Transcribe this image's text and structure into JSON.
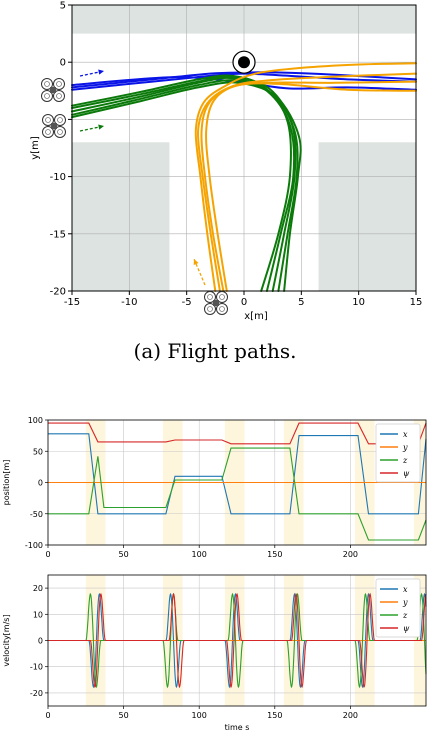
{
  "caption": "(a) Flight paths.",
  "chart_data": [
    {
      "type": "line",
      "xlabel": "x[m]",
      "ylabel": "y[m]",
      "xlim": [
        -15,
        15
      ],
      "ylim": [
        -20,
        5
      ],
      "xticks": [
        -15,
        -10,
        -5,
        0,
        5,
        10,
        15
      ],
      "yticks": [
        5,
        0,
        -5,
        -10,
        -15,
        -20
      ],
      "grid": true,
      "colors": {
        "blue": "#0a14e6",
        "green": "#0b7a0b",
        "orange": "#f5a300",
        "obstacle": "#dde3e0"
      },
      "obstacles": [
        {
          "x": [
            -15,
            15
          ],
          "y": [
            2.5,
            5
          ]
        },
        {
          "x": [
            -15,
            -6.5
          ],
          "y": [
            -7,
            -20
          ]
        },
        {
          "x": [
            6.5,
            15
          ],
          "y": [
            -7,
            -20
          ]
        }
      ],
      "series": [
        {
          "color": "blue",
          "points": [
            [
              -15,
              -2.2
            ],
            [
              -8,
              -1.5
            ],
            [
              -3,
              -1.0
            ],
            [
              0,
              -0.9
            ],
            [
              3,
              -0.9
            ],
            [
              8,
              -1.1
            ],
            [
              15,
              -1.5
            ]
          ]
        },
        {
          "color": "blue",
          "points": [
            [
              -15,
              -2.4
            ],
            [
              -8,
              -1.7
            ],
            [
              -3,
              -1.2
            ],
            [
              0,
              -1.0
            ],
            [
              4,
              -1.2
            ],
            [
              9,
              -1.5
            ],
            [
              15,
              -1.7
            ]
          ]
        },
        {
          "color": "blue",
          "points": [
            [
              -15,
              -2.0
            ],
            [
              -6,
              -1.3
            ],
            [
              0,
              -1.8
            ],
            [
              4,
              -2.3
            ],
            [
              9,
              -2.2
            ],
            [
              15,
              -2.4
            ]
          ]
        },
        {
          "color": "green",
          "points": [
            [
              -15,
              -4.3
            ],
            [
              -9,
              -3.0
            ],
            [
              -4,
              -1.8
            ],
            [
              -1,
              -1.4
            ],
            [
              2,
              -2.5
            ],
            [
              4,
              -5.5
            ],
            [
              4.3,
              -10
            ],
            [
              3.2,
              -15
            ],
            [
              2,
              -20
            ]
          ]
        },
        {
          "color": "green",
          "points": [
            [
              -15,
              -4.0
            ],
            [
              -9,
              -2.8
            ],
            [
              -4,
              -1.7
            ],
            [
              -1,
              -1.3
            ],
            [
              2.2,
              -2.3
            ],
            [
              4.2,
              -5.5
            ],
            [
              4.4,
              -10
            ],
            [
              3.5,
              -15
            ],
            [
              2.5,
              -20
            ]
          ]
        },
        {
          "color": "green",
          "points": [
            [
              -15,
              -4.6
            ],
            [
              -9,
              -3.2
            ],
            [
              -4,
              -2.0
            ],
            [
              -0.5,
              -1.6
            ],
            [
              2.5,
              -2.8
            ],
            [
              4.4,
              -6
            ],
            [
              4.6,
              -10
            ],
            [
              3.8,
              -15
            ],
            [
              3,
              -20
            ]
          ]
        },
        {
          "color": "green",
          "points": [
            [
              -15,
              -3.8
            ],
            [
              -9,
              -2.6
            ],
            [
              -4,
              -1.5
            ],
            [
              -1,
              -1.2
            ],
            [
              1.8,
              -2.2
            ],
            [
              3.8,
              -5.2
            ],
            [
              4.0,
              -10
            ],
            [
              3.0,
              -15
            ],
            [
              1.5,
              -20
            ]
          ]
        },
        {
          "color": "green",
          "points": [
            [
              -15,
              -4.8
            ],
            [
              -9,
              -3.4
            ],
            [
              -4,
              -2.2
            ],
            [
              -0.5,
              -1.8
            ],
            [
              2.8,
              -3.0
            ],
            [
              4.8,
              -6.5
            ],
            [
              4.7,
              -10
            ],
            [
              4.0,
              -15
            ],
            [
              3.5,
              -20
            ]
          ]
        },
        {
          "color": "orange",
          "points": [
            [
              -2.5,
              -20
            ],
            [
              -3.2,
              -15
            ],
            [
              -3.8,
              -10
            ],
            [
              -4.2,
              -6
            ],
            [
              -3.5,
              -3.5
            ],
            [
              -1.5,
              -2.0
            ],
            [
              1,
              -1.0
            ],
            [
              5,
              -0.5
            ],
            [
              10,
              -0.2
            ],
            [
              15,
              -0.1
            ]
          ]
        },
        {
          "color": "orange",
          "points": [
            [
              -1.8,
              -20
            ],
            [
              -2.7,
              -15
            ],
            [
              -3.4,
              -10
            ],
            [
              -3.7,
              -6
            ],
            [
              -3,
              -3.5
            ],
            [
              -1,
              -2.1
            ],
            [
              2,
              -1.6
            ],
            [
              7,
              -1.3
            ],
            [
              15,
              -1.0
            ]
          ]
        },
        {
          "color": "orange",
          "points": [
            [
              -1.5,
              -20
            ],
            [
              -2.3,
              -15
            ],
            [
              -3.0,
              -10
            ],
            [
              -3.3,
              -6
            ],
            [
              -2.6,
              -3.3
            ],
            [
              -0.5,
              -2.0
            ],
            [
              3,
              -1.9
            ],
            [
              9,
              -2.4
            ],
            [
              15,
              -2.5
            ]
          ]
        },
        {
          "color": "orange",
          "points": [
            [
              -2.1,
              -20
            ],
            [
              -2.9,
              -15
            ],
            [
              -3.6,
              -10
            ],
            [
              -4.0,
              -6
            ],
            [
              -3.2,
              -3.6
            ],
            [
              -1.2,
              -2.2
            ],
            [
              2,
              -1.8
            ],
            [
              8,
              -1.8
            ],
            [
              15,
              -1.7
            ]
          ]
        }
      ]
    },
    {
      "type": "line",
      "xlabel": "",
      "ylabel": "position[m]",
      "xlim": [
        0,
        250
      ],
      "ylim": [
        -100,
        100
      ],
      "xticks": [
        0,
        50,
        100,
        150,
        200
      ],
      "yticks": [
        100,
        50,
        0,
        -50,
        -100
      ],
      "grid": true,
      "legend": "top-right",
      "bands": [
        [
          25,
          38
        ],
        [
          76,
          89
        ],
        [
          117,
          130
        ],
        [
          156,
          169
        ],
        [
          203,
          216
        ],
        [
          242,
          250
        ]
      ],
      "series": [
        {
          "name": "x",
          "color": "#1f77b4",
          "points": [
            [
              0,
              78
            ],
            [
              27,
              78
            ],
            [
              33,
              -50
            ],
            [
              78,
              -50
            ],
            [
              84,
              10
            ],
            [
              115,
              10
            ],
            [
              121,
              -50
            ],
            [
              160,
              -50
            ],
            [
              166,
              75
            ],
            [
              205,
              75
            ],
            [
              212,
              -50
            ],
            [
              245,
              -50
            ],
            [
              250,
              70
            ]
          ]
        },
        {
          "name": "y",
          "color": "#ff7f0e",
          "points": [
            [
              0,
              0
            ],
            [
              250,
              0
            ]
          ]
        },
        {
          "name": "z",
          "color": "#2ca02c",
          "points": [
            [
              0,
              -50
            ],
            [
              27,
              -50
            ],
            [
              33,
              42
            ],
            [
              37,
              -40
            ],
            [
              78,
              -40
            ],
            [
              84,
              4
            ],
            [
              115,
              4
            ],
            [
              121,
              55
            ],
            [
              160,
              55
            ],
            [
              166,
              -50
            ],
            [
              205,
              -50
            ],
            [
              212,
              -92
            ],
            [
              245,
              -92
            ],
            [
              250,
              -60
            ]
          ]
        },
        {
          "name": "ψ",
          "color": "#d62728",
          "points": [
            [
              0,
              95
            ],
            [
              27,
              95
            ],
            [
              33,
              65
            ],
            [
              78,
              65
            ],
            [
              84,
              68
            ],
            [
              115,
              68
            ],
            [
              121,
              62
            ],
            [
              160,
              62
            ],
            [
              166,
              95
            ],
            [
              205,
              95
            ],
            [
              212,
              62
            ],
            [
              245,
              62
            ],
            [
              250,
              95
            ]
          ]
        }
      ]
    },
    {
      "type": "line",
      "xlabel": "time s",
      "ylabel": "velocity[m/s]",
      "xlim": [
        0,
        250
      ],
      "ylim": [
        -25,
        25
      ],
      "xticks": [
        0,
        50,
        100,
        150,
        200
      ],
      "yticks": [
        20,
        10,
        0,
        -10,
        -20
      ],
      "grid": true,
      "legend": "top-right",
      "bands": [
        [
          25,
          38
        ],
        [
          76,
          89
        ],
        [
          117,
          130
        ],
        [
          156,
          169
        ],
        [
          203,
          216
        ],
        [
          242,
          250
        ]
      ],
      "series": [
        {
          "name": "x",
          "color": "#1f77b4",
          "events": [
            [
              27,
              -1
            ],
            [
              78,
              1
            ],
            [
              117,
              -1
            ],
            [
              160,
              1
            ],
            [
              205,
              -1
            ],
            [
              246,
              1
            ]
          ]
        },
        {
          "name": "y",
          "color": "#ff7f0e",
          "events": []
        },
        {
          "name": "z",
          "color": "#2ca02c",
          "events": [
            [
              25,
              1
            ],
            [
              76,
              -1
            ],
            [
              119,
              1
            ],
            [
              158,
              -1
            ],
            [
              203,
              -1
            ],
            [
              244,
              1
            ]
          ]
        },
        {
          "name": "ψ",
          "color": "#d62728",
          "events": [
            [
              28,
              -1
            ],
            [
              80,
              1
            ],
            [
              118,
              -1
            ],
            [
              161,
              1
            ],
            [
              206,
              -1
            ],
            [
              247,
              1
            ]
          ]
        }
      ]
    }
  ]
}
